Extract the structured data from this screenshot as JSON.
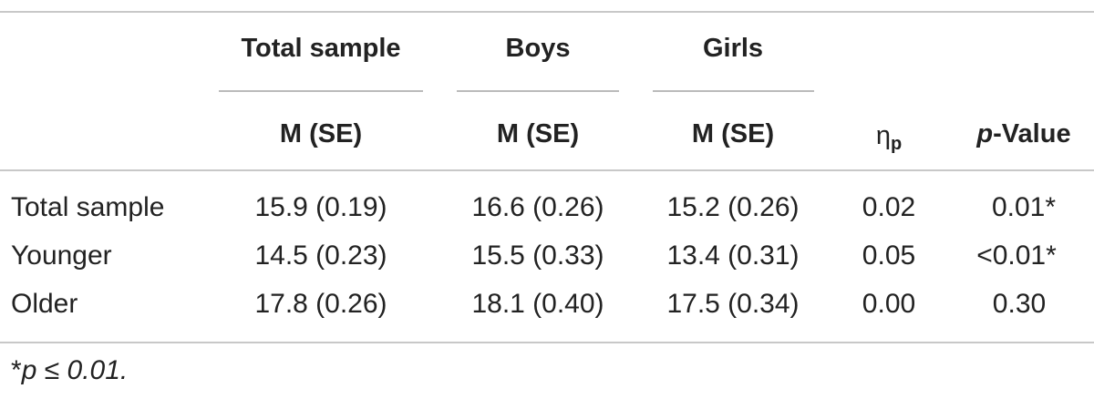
{
  "table": {
    "group_headers": {
      "total": "Total sample",
      "boys": "Boys",
      "girls": "Girls"
    },
    "sub_headers": {
      "total": "M (SE)",
      "boys": "M (SE)",
      "girls": "M (SE)",
      "eta_base": "η",
      "eta_sub": "p",
      "pvalue_italic": "p",
      "pvalue_rest": "-Value"
    },
    "rows": [
      {
        "label": "Total sample",
        "total": "15.9 (0.19)",
        "boys": "16.6 (0.26)",
        "girls": "15.2 (0.26)",
        "eta": "0.02",
        "p": "0.01*"
      },
      {
        "label": "Younger",
        "total": "14.5 (0.23)",
        "boys": "15.5 (0.33)",
        "girls": "13.4 (0.31)",
        "eta": "0.05",
        "p": "<0.01*"
      },
      {
        "label": "Older",
        "total": "17.8 (0.26)",
        "boys": "18.1 (0.40)",
        "girls": "17.5 (0.34)",
        "eta": "0.00",
        "p": "0.30"
      }
    ],
    "footnote": {
      "star": "*",
      "text": "p ≤ 0.01."
    }
  }
}
